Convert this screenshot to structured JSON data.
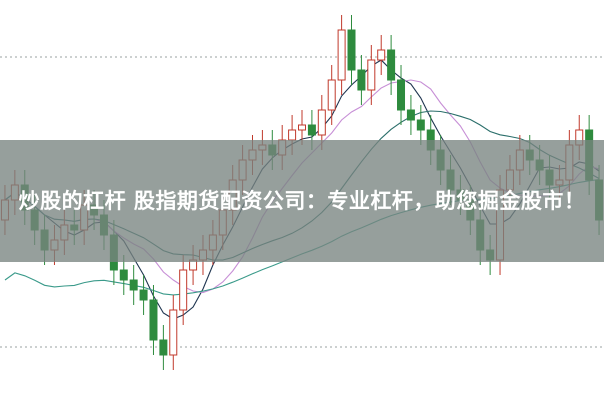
{
  "headline": "炒股的杠杆 股指期货配资公司：专业杠杆，助您掘金股市！",
  "chart_data": {
    "type": "candlestick",
    "colors": {
      "up": "#c0392b",
      "down": "#2e8b3e",
      "ma5": "#1f3550",
      "ma10": "#c78fd6",
      "ma20": "#2a6e6a",
      "ma60": "#3a9a8a",
      "grid": "#9aa0a0"
    },
    "open": [
      180,
      200,
      215,
      190,
      170,
      150,
      160,
      175,
      170,
      195,
      185,
      165,
      130,
      120,
      110,
      100,
      60,
      45,
      90,
      130,
      140,
      150,
      165,
      190,
      220,
      240,
      250,
      255,
      245,
      260,
      270,
      275,
      265,
      290,
      320,
      370,
      330,
      310,
      340,
      350,
      320,
      290,
      280,
      270,
      250,
      230,
      210,
      200,
      180,
      150,
      140,
      210,
      230,
      250,
      240,
      230,
      215,
      220,
      255,
      270,
      220
    ],
    "close": [
      200,
      215,
      190,
      170,
      150,
      160,
      175,
      170,
      195,
      185,
      165,
      130,
      120,
      110,
      100,
      60,
      45,
      90,
      130,
      140,
      150,
      165,
      190,
      220,
      240,
      250,
      255,
      245,
      260,
      270,
      275,
      265,
      290,
      320,
      370,
      330,
      310,
      340,
      350,
      320,
      290,
      280,
      270,
      250,
      230,
      210,
      200,
      180,
      150,
      140,
      210,
      230,
      250,
      240,
      230,
      215,
      220,
      255,
      270,
      220,
      180
    ],
    "moving_averages": [
      5,
      10,
      20,
      60
    ],
    "grid": true
  }
}
